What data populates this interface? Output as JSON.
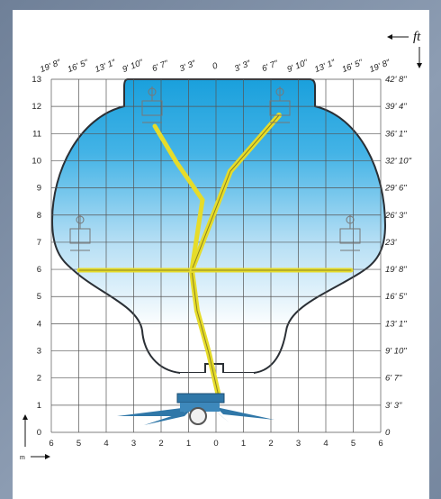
{
  "meter_y_ticks": [
    "0",
    "1",
    "2",
    "3",
    "4",
    "5",
    "6",
    "7",
    "8",
    "9",
    "10",
    "11",
    "12",
    "13"
  ],
  "feet_y_ticks": [
    "0",
    "3' 3\"",
    "6' 7\"",
    "9' 10\"",
    "13' 1\"",
    "16' 5\"",
    "19' 8\"",
    "23'",
    "26' 3\"",
    "29' 6\"",
    "32' 10\"",
    "36' 1\"",
    "39' 4\"",
    "42' 8\""
  ],
  "meter_x_ticks": [
    "6",
    "5",
    "4",
    "3",
    "2",
    "1",
    "0",
    "1",
    "2",
    "3",
    "4",
    "5",
    "6"
  ],
  "feet_x_ticks": [
    "19' 8\"",
    "16' 5\"",
    "13' 1\"",
    "9' 10\"",
    "6' 7\"",
    "3' 3\"",
    "0",
    "3' 3\"",
    "6' 7\"",
    "9' 10\"",
    "13' 1\"",
    "16' 5\"",
    "19' 8\""
  ],
  "unit_ft": "ft",
  "unit_m": "m",
  "colors": {
    "envelope_top": "#1aa0dc",
    "envelope_bottom": "#ffffff",
    "boom": "#e6dc2a",
    "base": "#2f77a8"
  }
}
